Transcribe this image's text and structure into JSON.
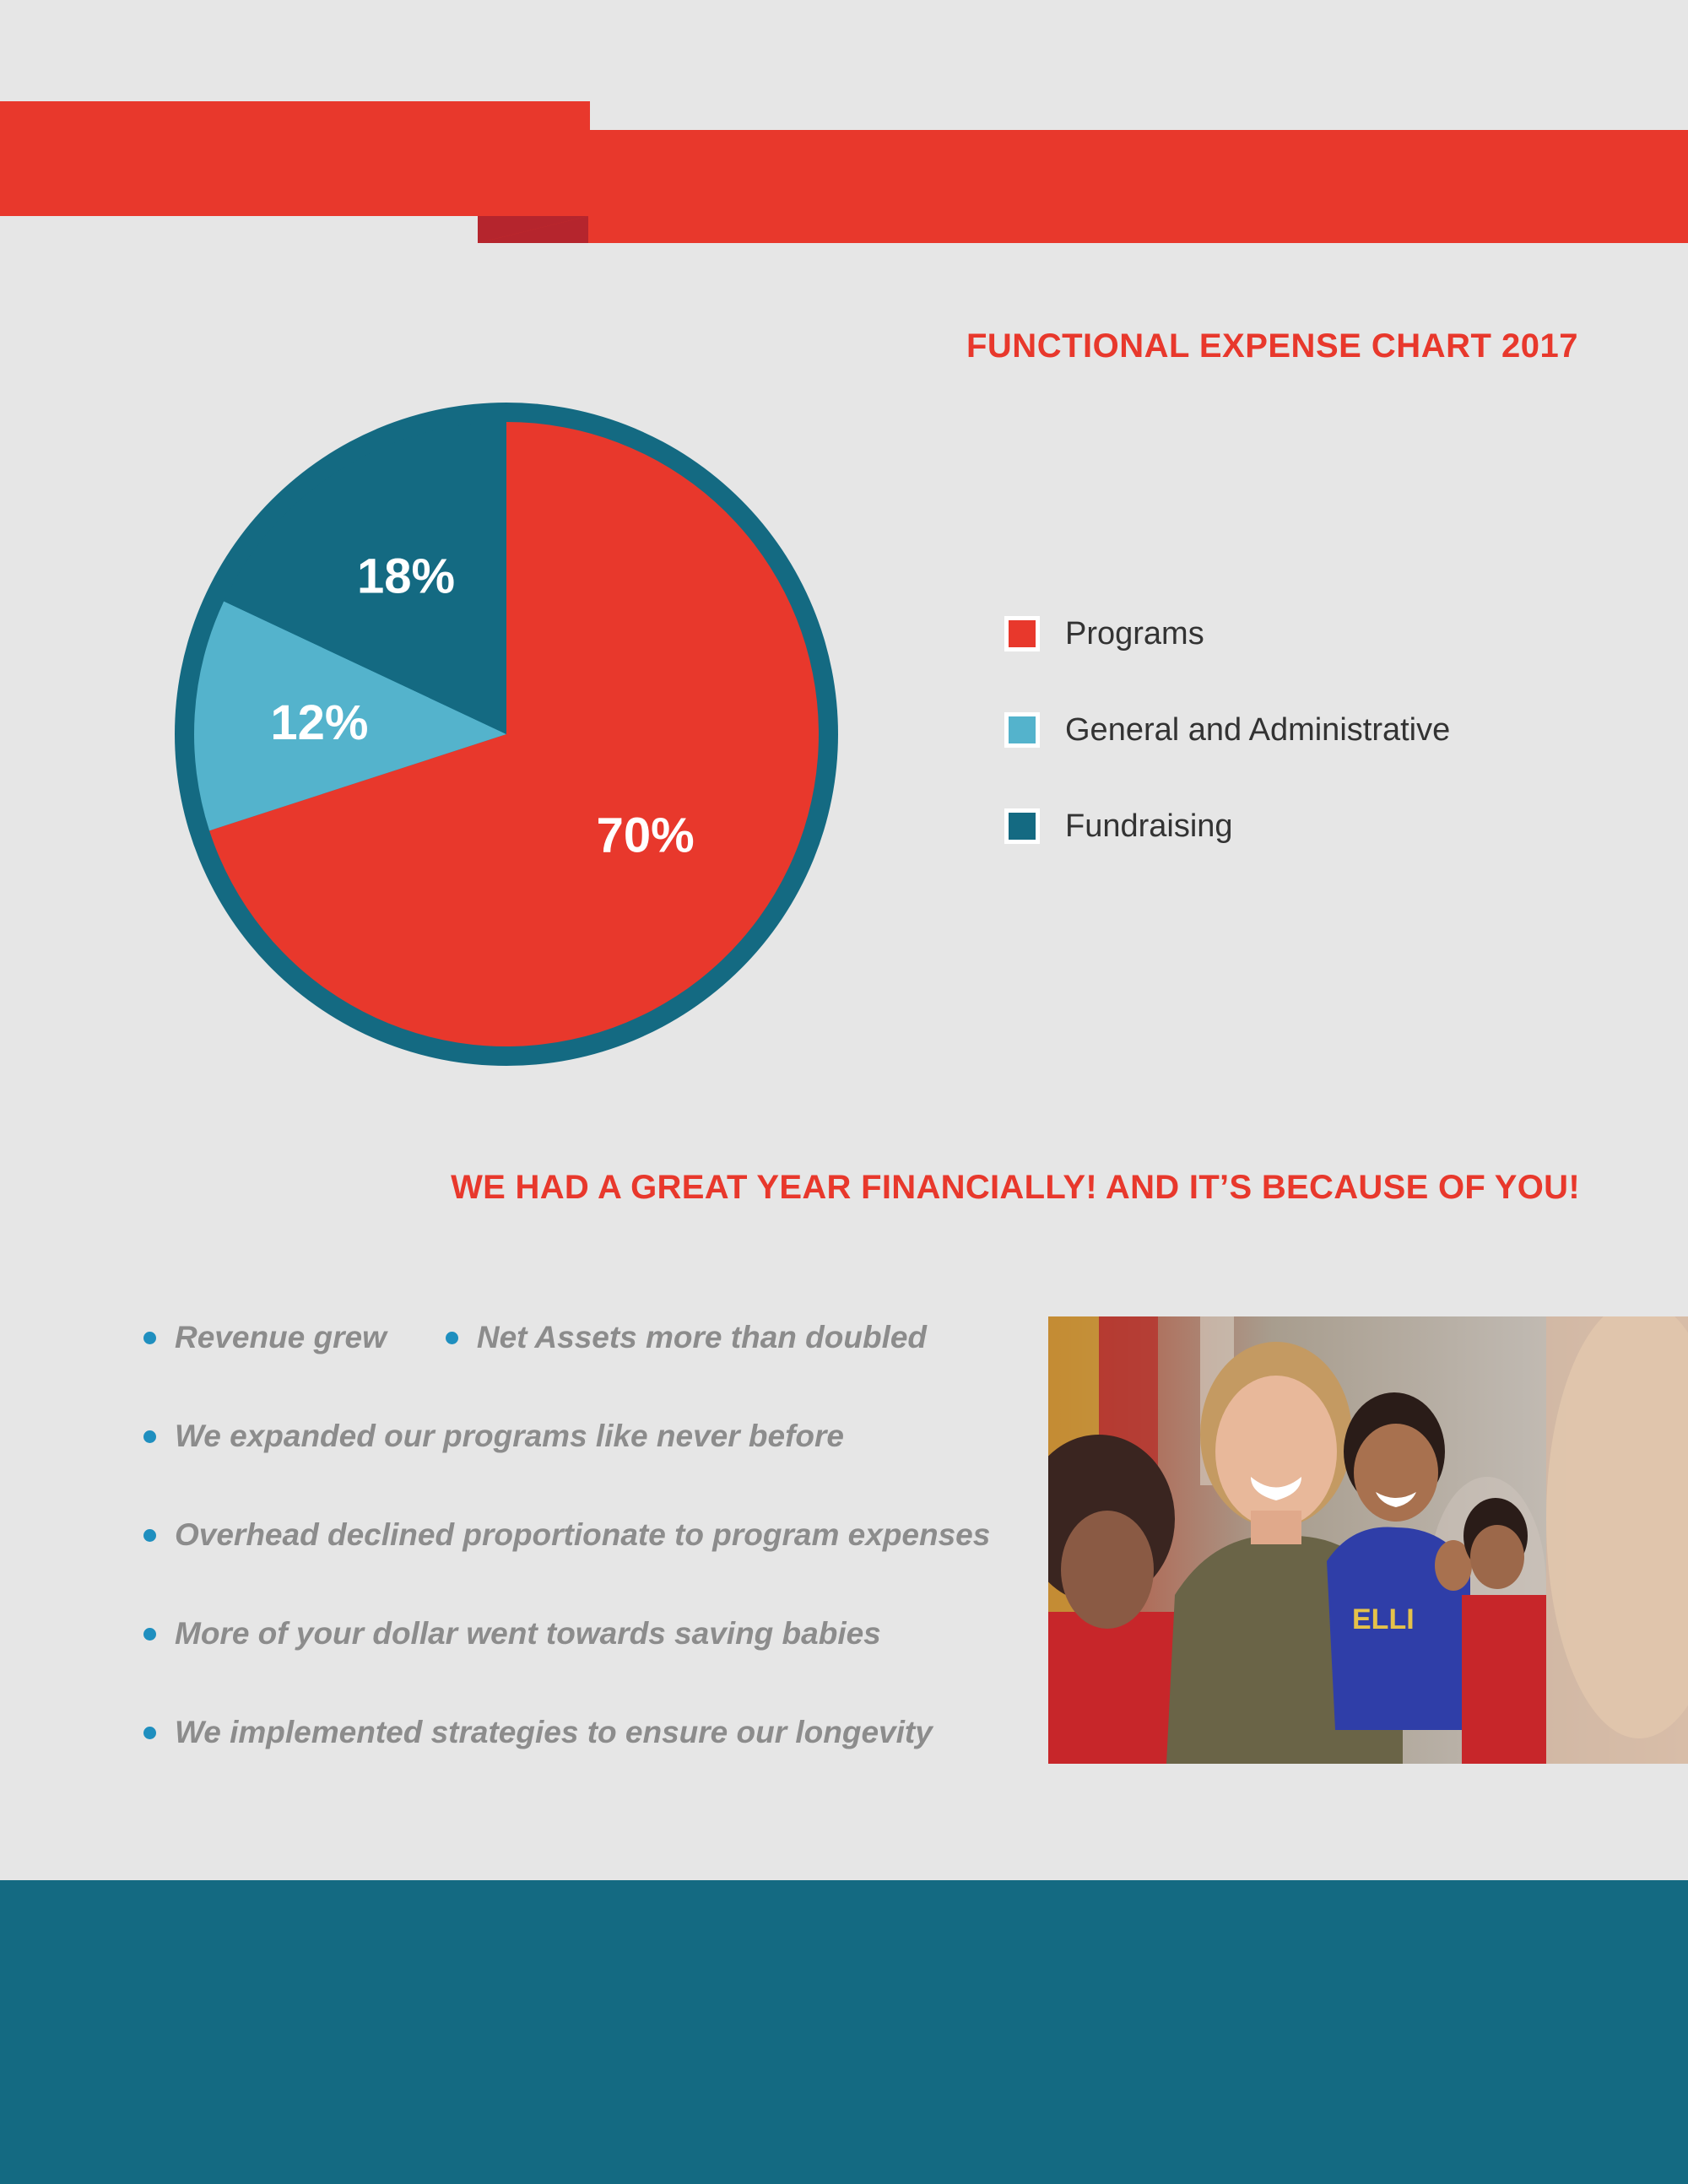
{
  "colors": {
    "programs": "#e8382c",
    "general_admin": "#54b3cc",
    "fundraising": "#146a82",
    "accent_red": "#e8382c",
    "bullet_dot": "#1f8fbf"
  },
  "header": {
    "chart_title": "FUNCTIONAL EXPENSE CHART 2017"
  },
  "chart_data": {
    "type": "pie",
    "title": "FUNCTIONAL EXPENSE CHART 2017",
    "categories": [
      "Programs",
      "General and Administrative",
      "Fundraising"
    ],
    "values": [
      70,
      12,
      18
    ],
    "labels": [
      "70%",
      "12%",
      "18%"
    ],
    "legend_placement": "right"
  },
  "legend": [
    {
      "label": "Programs",
      "color": "#e8382c"
    },
    {
      "label": "General and Administrative",
      "color": "#54b3cc"
    },
    {
      "label": "Fundraising",
      "color": "#146a82"
    }
  ],
  "tagline": "WE HAD A GREAT YEAR FINANCIALLY! AND IT’S BECAUSE OF YOU!",
  "highlights": [
    "Revenue grew",
    "Net Assets more than doubled",
    "We expanded our programs like never before",
    "Overhead declined proportionate to program expenses",
    "More of your dollar went towards saving babies",
    "We implemented strategies to ensure our longevity"
  ],
  "photo": {
    "icon": "photo-icon",
    "subject": "woman smiling holding a young boy in a blue shirt"
  }
}
